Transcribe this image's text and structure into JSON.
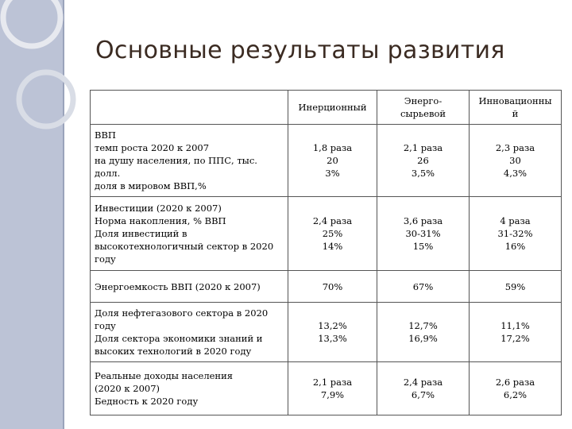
{
  "slide": {
    "title": "Основные результаты развития"
  },
  "table": {
    "headers": [
      "",
      "Инерционный",
      "Энерго-сырьевой",
      "Инновационный"
    ],
    "header_lines": [
      [],
      [
        "Инерционный"
      ],
      [
        "Энерго-",
        "сырьевой"
      ],
      [
        "Инновационны",
        "й"
      ]
    ],
    "rows": [
      {
        "label_lines": [
          "ВВП",
          "темп роста 2020 к 2007",
          "на душу населения, по ППС, тыс. долл.",
          "доля в мировом ВВП,%"
        ],
        "inertial": [
          "1,8 раза",
          "20",
          "3%"
        ],
        "energy": [
          "2,1 раза",
          "26",
          "3,5%"
        ],
        "innovation": [
          "2,3 раза",
          "30",
          "4,3%"
        ]
      },
      {
        "label_lines": [
          "Инвестиции (2020 к 2007)",
          "Норма накопления, % ВВП",
          "Доля инвестиций в высокотехнологичный сектор в 2020 году"
        ],
        "inertial": [
          "2,4 раза",
          "25%",
          "14%"
        ],
        "energy": [
          "3,6 раза",
          "30-31%",
          "15%"
        ],
        "innovation": [
          "4 раза",
          "31-32%",
          "16%"
        ]
      },
      {
        "label_lines": [
          "Энергоемкость ВВП (2020 к 2007)"
        ],
        "inertial": [
          "70%"
        ],
        "energy": [
          "67%"
        ],
        "innovation": [
          "59%"
        ]
      },
      {
        "label_lines": [
          "Доля нефтегазового сектора в 2020 году",
          "Доля сектора экономики знаний и высоких технологий в 2020 году"
        ],
        "inertial": [
          "13,2%",
          "13,3%"
        ],
        "energy": [
          "12,7%",
          "16,9%"
        ],
        "innovation": [
          "11,1%",
          "17,2%"
        ]
      },
      {
        "label_lines": [
          "Реальные доходы населения",
          "(2020 к 2007)",
          "Бедность к 2020 году"
        ],
        "inertial": [
          "2,1 раза",
          "7,9%"
        ],
        "energy": [
          "2,4 раза",
          "6,7%"
        ],
        "innovation": [
          "2,6 раза",
          "6,2%"
        ]
      }
    ]
  }
}
